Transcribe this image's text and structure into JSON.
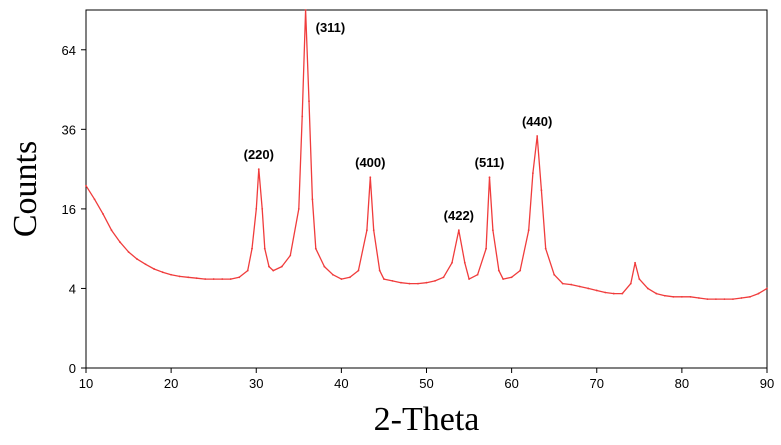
{
  "chart_data": {
    "type": "line",
    "title": "",
    "xlabel": "2-Theta",
    "ylabel": "Counts",
    "xlim": [
      10,
      90
    ],
    "ylim": [
      0,
      81
    ],
    "y_scale": "sqrt",
    "grid": false,
    "legend": "none",
    "series_color": "#f03c3c",
    "x_ticks": [
      "10",
      "20",
      "30",
      "40",
      "50",
      "60",
      "70",
      "80",
      "90"
    ],
    "y_ticks": [
      "0",
      "4",
      "16",
      "36",
      "64"
    ],
    "peaks": [
      {
        "label": "(220)",
        "x": 30.3,
        "y": 25
      },
      {
        "label": "(311)",
        "x": 35.8,
        "y": 81
      },
      {
        "label": "(400)",
        "x": 43.4,
        "y": 23
      },
      {
        "label": "(422)",
        "x": 53.8,
        "y": 12
      },
      {
        "label": "(511)",
        "x": 57.4,
        "y": 23
      },
      {
        "label": "(440)",
        "x": 63.0,
        "y": 34
      }
    ],
    "series": [
      {
        "x": [
          10,
          11,
          12,
          13,
          14,
          15,
          16,
          17,
          18,
          19,
          20,
          21,
          22,
          23,
          24,
          25,
          26,
          27,
          28,
          29,
          29.5,
          30,
          30.3,
          30.7,
          31,
          31.5,
          32,
          33,
          34,
          35,
          35.4,
          35.8,
          36.2,
          36.6,
          37,
          38,
          39,
          40,
          41,
          42,
          43,
          43.4,
          43.8,
          44.5,
          45,
          46,
          47,
          48,
          49,
          50,
          51,
          52,
          53,
          53.8,
          54.5,
          55,
          56,
          57,
          57.4,
          57.8,
          58.5,
          59,
          60,
          61,
          62,
          62.5,
          63,
          63.5,
          64,
          65,
          66,
          67,
          68,
          69,
          70,
          71,
          72,
          73,
          74,
          74.5,
          75,
          76,
          77,
          78,
          79,
          80,
          81,
          82,
          83,
          84,
          85,
          86,
          87,
          88,
          89,
          90
        ],
        "y": [
          21,
          18,
          15,
          12,
          10,
          8.5,
          7.5,
          6.8,
          6.2,
          5.8,
          5.5,
          5.3,
          5.2,
          5.1,
          5.0,
          5.0,
          5.0,
          5.0,
          5.2,
          6,
          9,
          16,
          25,
          16,
          9,
          6.5,
          6,
          6.5,
          8,
          16,
          40,
          81,
          45,
          18,
          9,
          6.5,
          5.5,
          5,
          5.2,
          6,
          12,
          23,
          12,
          6,
          5,
          4.8,
          4.6,
          4.5,
          4.5,
          4.6,
          4.8,
          5.2,
          7,
          12,
          7,
          5,
          5.5,
          9,
          23,
          12,
          6,
          5,
          5.2,
          6,
          12,
          24,
          34,
          20,
          9,
          5.5,
          4.5,
          4.4,
          4.2,
          4.0,
          3.8,
          3.6,
          3.5,
          3.5,
          4.5,
          7,
          5,
          4,
          3.5,
          3.3,
          3.2,
          3.2,
          3.2,
          3.1,
          3.0,
          3.0,
          3.0,
          3.0,
          3.1,
          3.2,
          3.5,
          4
        ]
      }
    ]
  }
}
